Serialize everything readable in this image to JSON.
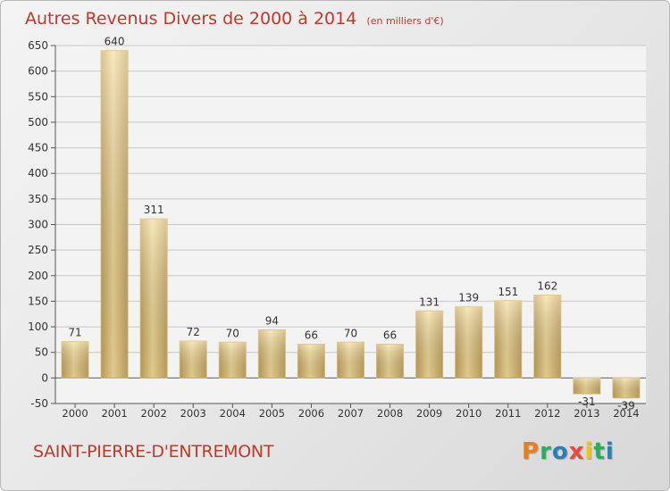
{
  "title": "Autres Revenus Divers de 2000 à 2014",
  "subtitle": "(en milliers d'€)",
  "commune": "SAINT-PIERRE-D'ENTREMONT",
  "logo": {
    "letters": [
      "P",
      "r",
      "o",
      "x",
      "i",
      "t",
      "i"
    ],
    "colors": [
      "#e67e22",
      "#27ae60",
      "#2980b9",
      "#e74c3c",
      "#f1c40f",
      "#27ae60",
      "#2980b9"
    ]
  },
  "chart_data": {
    "type": "bar",
    "categories": [
      "2000",
      "2001",
      "2002",
      "2003",
      "2004",
      "2005",
      "2006",
      "2007",
      "2008",
      "2009",
      "2010",
      "2011",
      "2012",
      "2013",
      "2014"
    ],
    "values": [
      71,
      640,
      311,
      72,
      70,
      94,
      66,
      70,
      66,
      131,
      139,
      151,
      162,
      -31,
      -39
    ],
    "ylim": [
      -50,
      650
    ],
    "yticks": [
      -50,
      0,
      50,
      100,
      150,
      200,
      250,
      300,
      350,
      400,
      450,
      500,
      550,
      600,
      650
    ],
    "grid": "y",
    "colors": {
      "bar_light": "#f4dc98",
      "bar_dark": "#c6a55e",
      "bar_edge": "#d9bd72",
      "grid": "#c8c8c8"
    }
  }
}
